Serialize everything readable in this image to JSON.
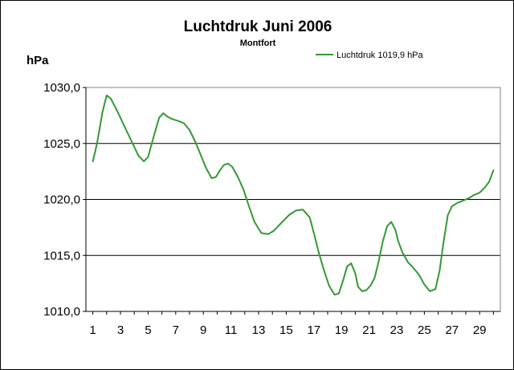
{
  "chart_data": {
    "type": "line",
    "title": "Luchtdruk Juni 2006",
    "subtitle": "Montfort",
    "ylabel": "hPa",
    "xlabel": "",
    "ylim": [
      1010,
      1030
    ],
    "yticks": [
      "1010,0",
      "1015,0",
      "1020,0",
      "1025,0",
      "1030,0"
    ],
    "ytick_values": [
      1010,
      1015,
      1020,
      1025,
      1030
    ],
    "xticks": [
      "1",
      "3",
      "5",
      "7",
      "9",
      "11",
      "13",
      "15",
      "17",
      "19",
      "21",
      "23",
      "25",
      "27",
      "29"
    ],
    "xtick_values": [
      1,
      3,
      5,
      7,
      9,
      11,
      13,
      15,
      17,
      19,
      21,
      23,
      25,
      27,
      29
    ],
    "xlim": [
      0.5,
      30.5
    ],
    "grid": "horizontal",
    "legend_position": "top-right",
    "series": [
      {
        "name": "Luchtdruk 1019,9 hPa",
        "color": "#339933",
        "x": [
          1.0,
          1.3,
          1.7,
          2.0,
          2.3,
          2.8,
          3.3,
          3.8,
          4.3,
          4.7,
          5.0,
          5.4,
          5.8,
          6.1,
          6.4,
          6.7,
          7.2,
          7.6,
          8.0,
          8.4,
          8.8,
          9.2,
          9.6,
          9.9,
          10.2,
          10.5,
          10.8,
          11.1,
          11.5,
          11.9,
          12.3,
          12.7,
          13.2,
          13.7,
          14.1,
          14.4,
          14.8,
          15.2,
          15.7,
          16.2,
          16.7,
          17.0,
          17.3,
          17.7,
          18.1,
          18.5,
          18.8,
          19.1,
          19.4,
          19.7,
          20.0,
          20.2,
          20.5,
          20.8,
          21.1,
          21.4,
          21.7,
          22.0,
          22.3,
          22.6,
          22.9,
          23.1,
          23.4,
          23.8,
          24.2,
          24.6,
          25.0,
          25.4,
          25.8,
          26.1,
          26.4,
          26.7,
          27.0,
          27.4,
          27.8,
          28.2,
          28.6,
          29.0,
          29.4,
          29.7,
          30.0
        ],
        "y": [
          1023.4,
          1025.0,
          1027.8,
          1029.3,
          1029.0,
          1027.8,
          1026.5,
          1025.2,
          1023.9,
          1023.4,
          1023.8,
          1025.6,
          1027.3,
          1027.7,
          1027.4,
          1027.2,
          1027.0,
          1026.8,
          1026.2,
          1025.2,
          1024.0,
          1022.8,
          1021.9,
          1022.0,
          1022.6,
          1023.1,
          1023.2,
          1022.9,
          1022.0,
          1020.9,
          1019.4,
          1018.0,
          1017.0,
          1016.9,
          1017.2,
          1017.6,
          1018.1,
          1018.6,
          1019.0,
          1019.1,
          1018.4,
          1017.0,
          1015.5,
          1013.8,
          1012.3,
          1011.5,
          1011.6,
          1012.7,
          1014.0,
          1014.3,
          1013.4,
          1012.2,
          1011.8,
          1011.9,
          1012.3,
          1013.0,
          1014.5,
          1016.3,
          1017.6,
          1018.0,
          1017.3,
          1016.3,
          1015.3,
          1014.4,
          1013.9,
          1013.3,
          1012.4,
          1011.8,
          1012.0,
          1013.6,
          1016.3,
          1018.6,
          1019.4,
          1019.7,
          1019.9,
          1020.1,
          1020.4,
          1020.6,
          1021.1,
          1021.6,
          1022.6
        ]
      }
    ]
  }
}
